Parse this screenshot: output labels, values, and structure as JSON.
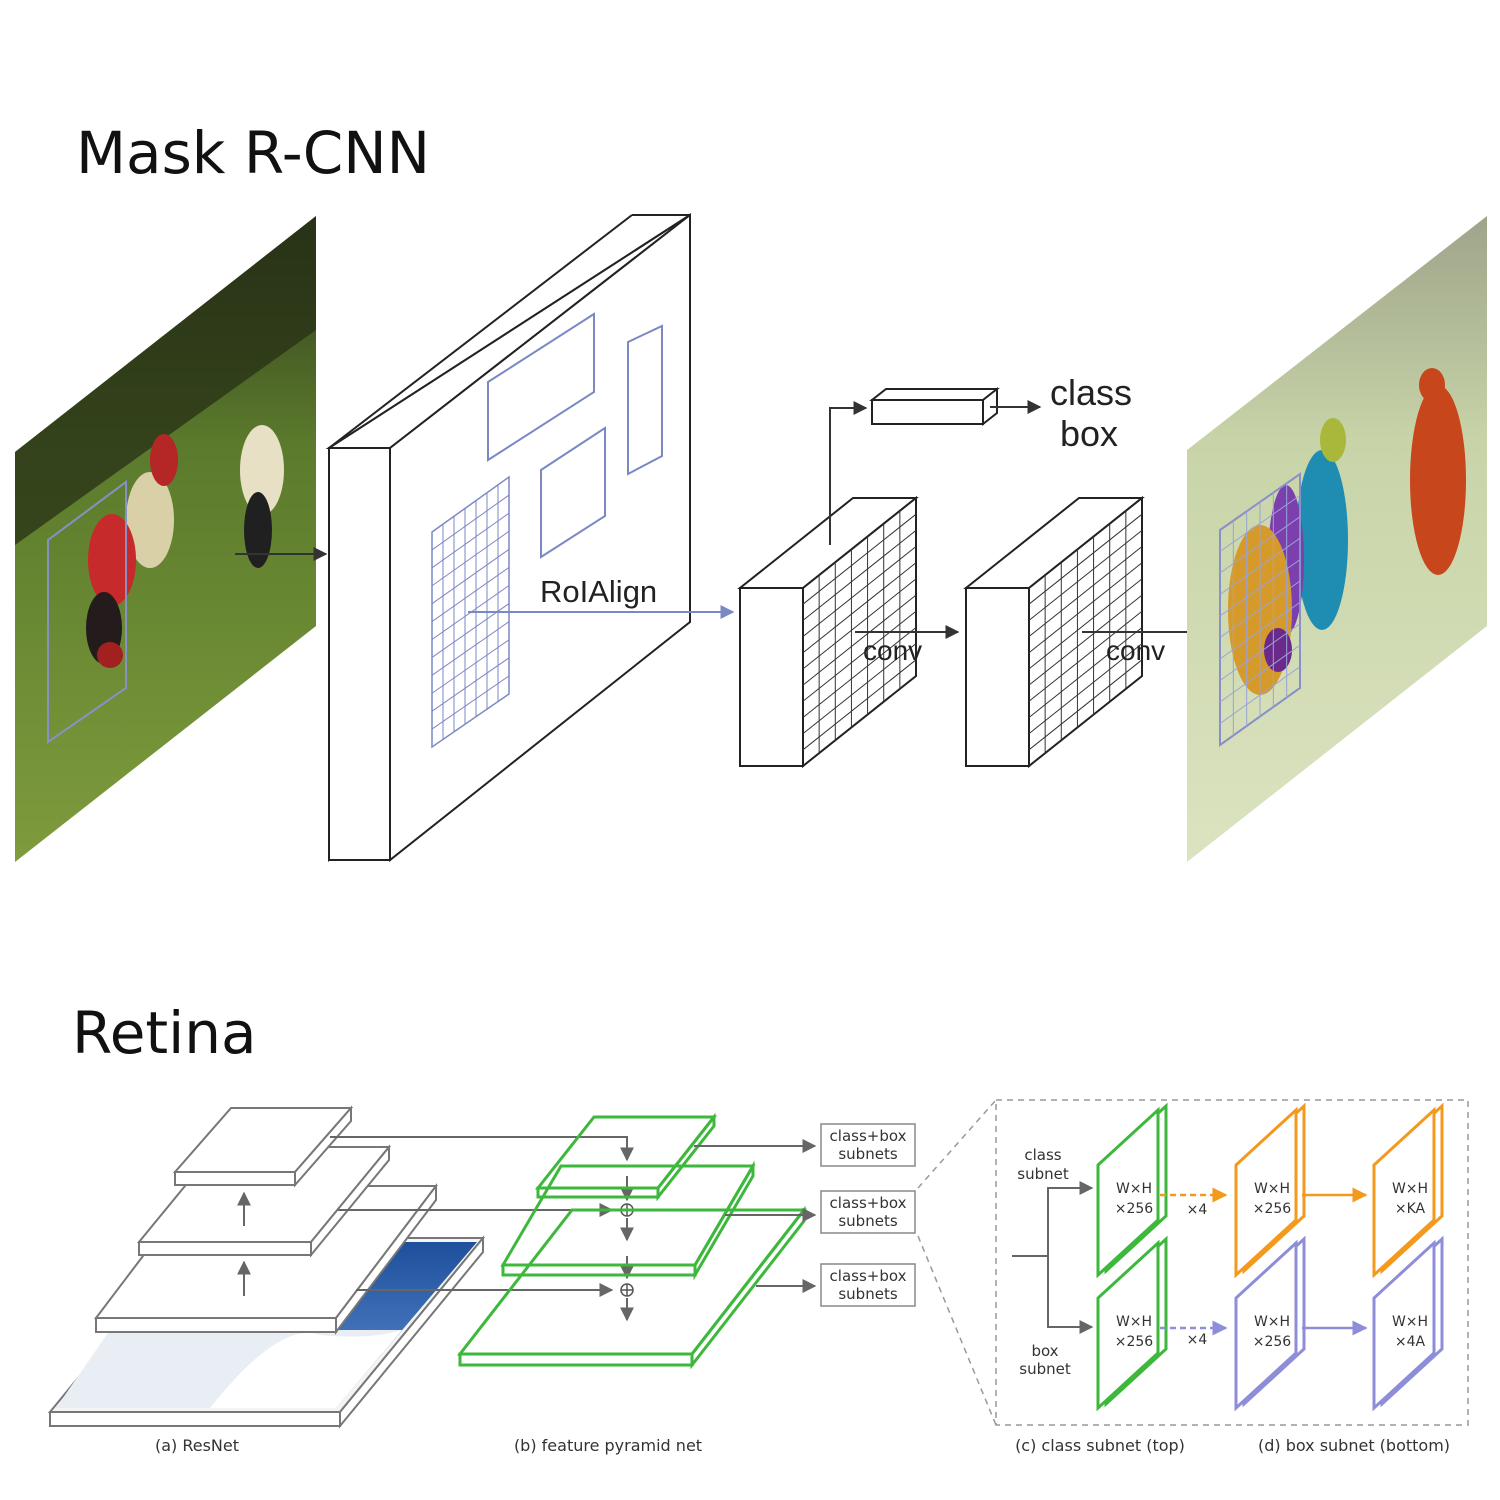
{
  "titles": {
    "mask_rcnn": "Mask R-CNN",
    "retina": "Retina"
  },
  "mask_rcnn": {
    "roi_label": "RoIAlign",
    "conv1_label": "conv",
    "conv2_label": "conv",
    "head_class": "class",
    "head_box": "box"
  },
  "retina": {
    "subnet_labels": [
      "class+box",
      "subnets"
    ],
    "class_subnet": [
      "class",
      "subnet"
    ],
    "box_subnet": [
      "box",
      "subnet"
    ],
    "dims": {
      "wh": "W×H",
      "x256": "×256",
      "xka": "×KA",
      "x4a": "×4A",
      "times4": "×4"
    },
    "captions": {
      "a": "(a) ResNet",
      "b": "(b) feature pyramid net",
      "c": "(c) class subnet (top)",
      "d": "(d) box subnet (bottom)"
    }
  },
  "colors": {
    "green": "#3db83d",
    "orange": "#f39a1e",
    "purple": "#8e8ed8",
    "roi_blue": "#7b88c4",
    "gray": "#7a7a7a"
  }
}
